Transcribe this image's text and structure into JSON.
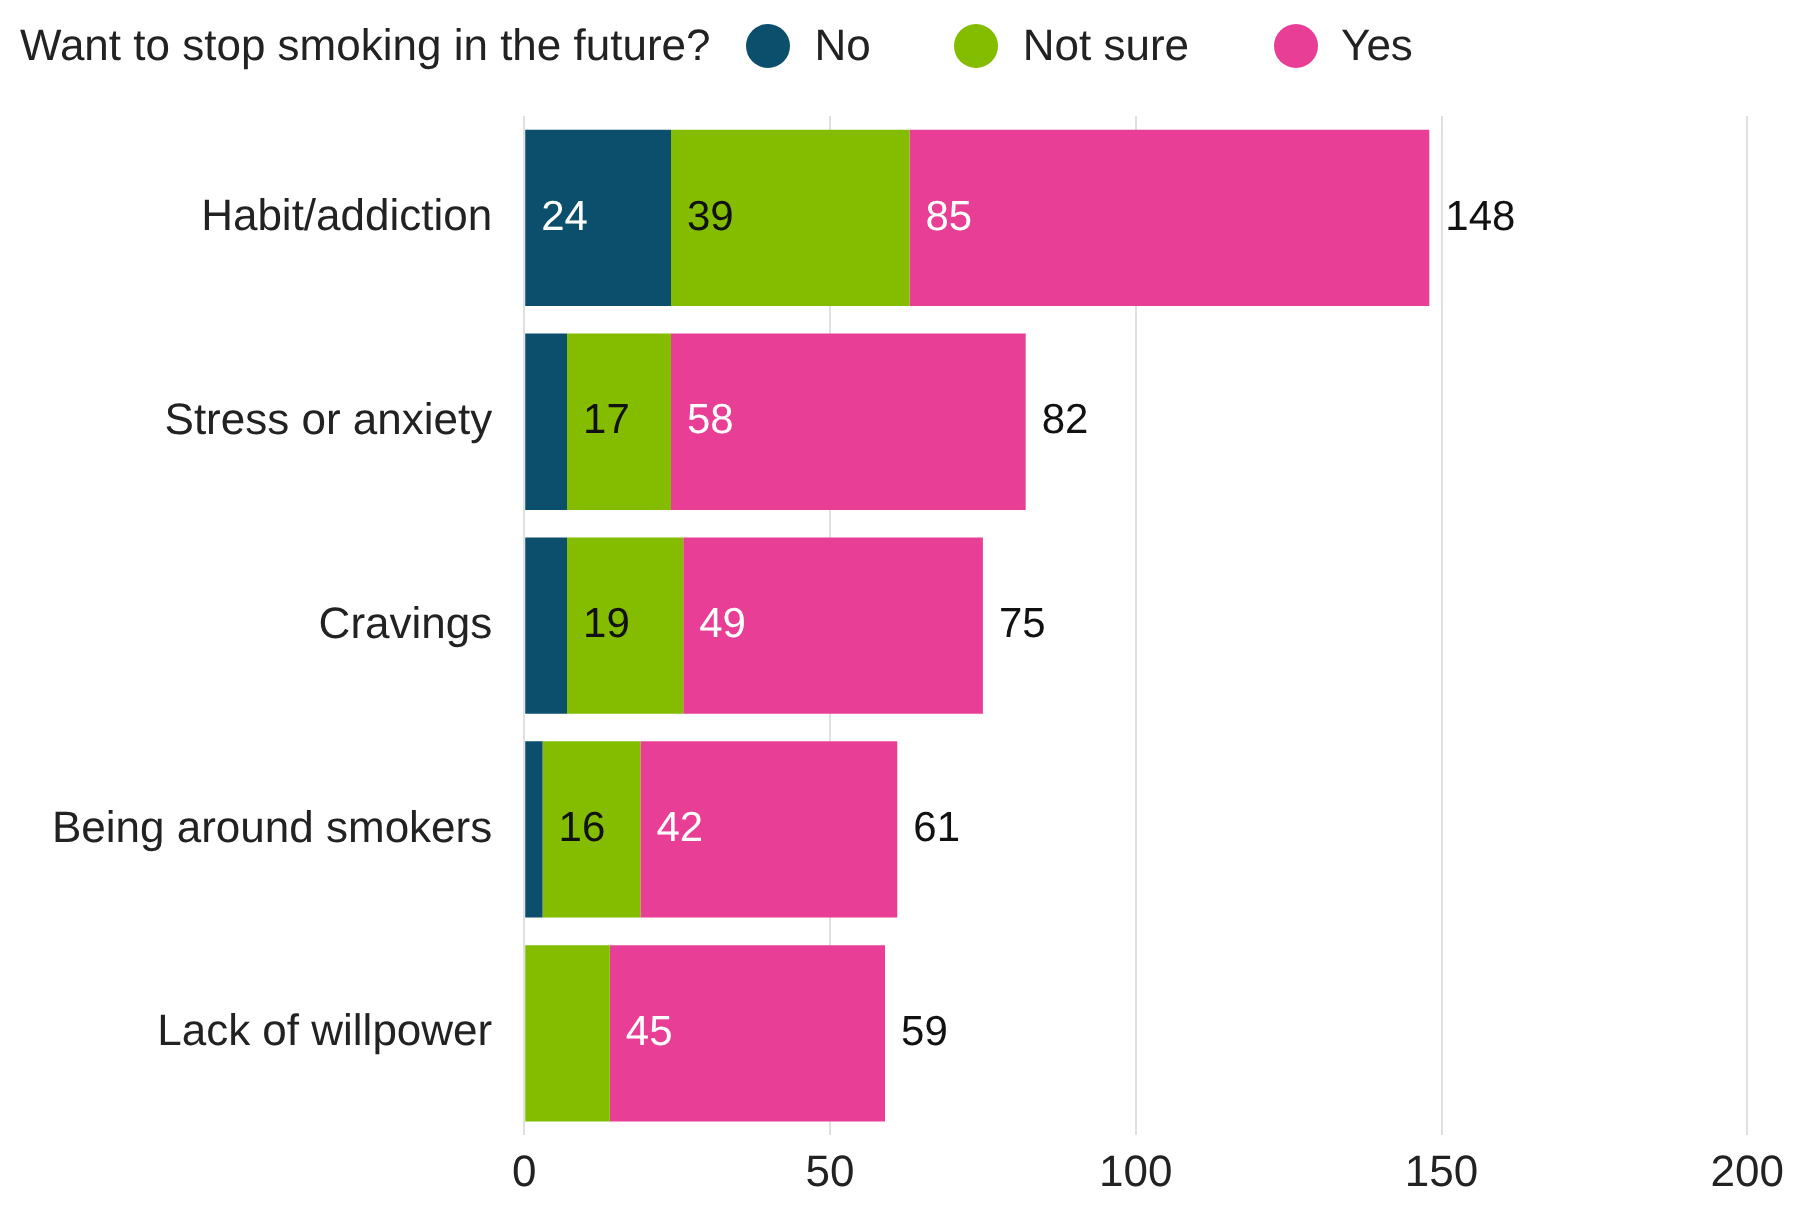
{
  "chart_data": {
    "type": "bar",
    "orientation": "horizontal",
    "stacked": true,
    "legend_title": "Want to stop smoking in the future?",
    "legend": "top left",
    "grid": "x",
    "categories": [
      "Habit/addiction",
      "Stress or anxiety",
      "Cravings",
      "Being around smokers",
      "Lack of willpower"
    ],
    "series": [
      {
        "name": "No",
        "color": "#0b4f6c",
        "values": [
          24,
          7,
          7,
          3,
          0
        ],
        "value_labels": [
          "24",
          null,
          null,
          null,
          null
        ]
      },
      {
        "name": "Not sure",
        "color": "#84bd00",
        "values": [
          39,
          17,
          19,
          16,
          14
        ],
        "value_labels": [
          "39",
          "17",
          "19",
          "16",
          null
        ]
      },
      {
        "name": "Yes",
        "color": "#e83e96",
        "values": [
          85,
          58,
          49,
          42,
          45
        ],
        "value_labels": [
          "85",
          "58",
          "49",
          "42",
          "45"
        ]
      }
    ],
    "totals": [
      "148",
      "82",
      "75",
      "61",
      "59"
    ],
    "xlim": [
      0,
      200
    ],
    "xticks": [
      0,
      50,
      100,
      150,
      200
    ]
  }
}
